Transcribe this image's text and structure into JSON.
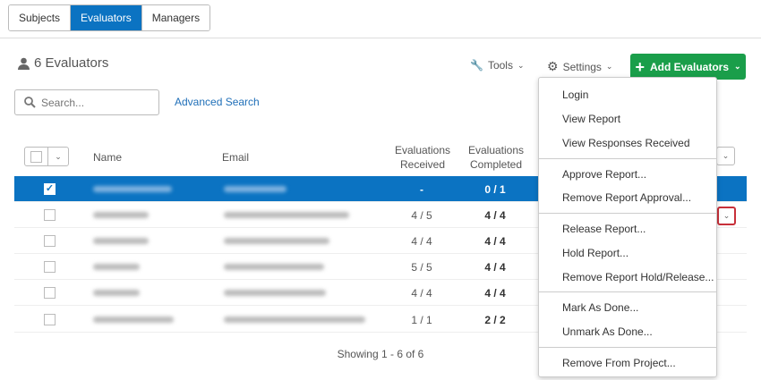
{
  "tabs": [
    {
      "label": "Subjects"
    },
    {
      "label": "Evaluators",
      "active": true
    },
    {
      "label": "Managers"
    }
  ],
  "header": {
    "count_label": "6 Evaluators",
    "tools": "Tools",
    "settings": "Settings",
    "add": "Add Evaluators"
  },
  "search": {
    "placeholder": "Search...",
    "advanced": "Advanced Search"
  },
  "table": {
    "columns": {
      "name": "Name",
      "email": "Email",
      "received": "Evaluations Received",
      "completed": "Evaluations Completed"
    },
    "rows": [
      {
        "selected": true,
        "received": "-",
        "completed": "0 / 1"
      },
      {
        "selected": false,
        "received": "4 / 5",
        "completed": "4 / 4"
      },
      {
        "selected": false,
        "received": "4 / 4",
        "completed": "4 / 4"
      },
      {
        "selected": false,
        "received": "5 / 5",
        "completed": "4 / 4"
      },
      {
        "selected": false,
        "received": "4 / 4",
        "completed": "4 / 4"
      },
      {
        "selected": false,
        "received": "1 / 1",
        "completed": "2 / 2"
      }
    ],
    "footer": "Showing 1 - 6 of 6"
  },
  "menu": {
    "items": [
      "Login",
      "View Report",
      "View Responses Received",
      "Approve Report...",
      "Remove Report Approval...",
      "Release Report...",
      "Hold Report...",
      "Remove Report Hold/Release...",
      "Mark As Done...",
      "Unmark As Done...",
      "Remove From Project..."
    ]
  },
  "colors": {
    "primary": "#0b73c2",
    "add_button": "#1a9e4a",
    "highlight_border": "#c8303a"
  }
}
